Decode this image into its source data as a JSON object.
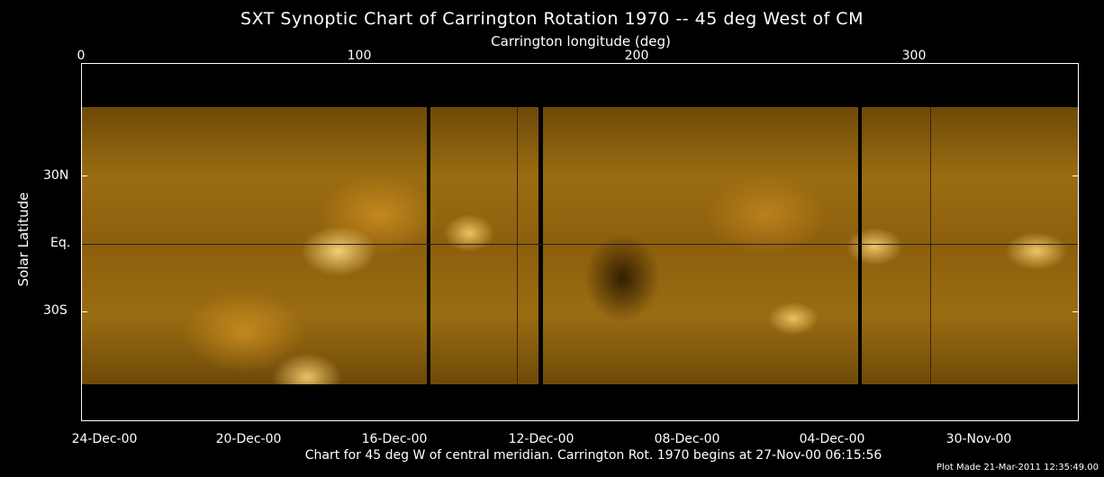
{
  "title": "SXT Synoptic Chart of Carrington Rotation 1970 -- 45 deg West of CM",
  "top_axis": {
    "label": "Carrington longitude (deg)",
    "ticks": [
      "0",
      "100",
      "200",
      "300"
    ]
  },
  "left_axis": {
    "label": "Solar Latitude",
    "ticks": [
      "30N",
      "Eq.",
      "30S"
    ]
  },
  "bottom_axis": {
    "ticks": [
      "24-Dec-00",
      "20-Dec-00",
      "16-Dec-00",
      "12-Dec-00",
      "08-Dec-00",
      "04-Dec-00",
      "30-Nov-00"
    ]
  },
  "caption": "Chart for 45 deg W of central meridian.  Carrington Rot. 1970 begins at 27-Nov-00 06:15:56",
  "plot_made": "Plot Made 21-Mar-2011 12:35:49.00",
  "colors": {
    "background": "#000000",
    "map_base": "#9a6c12",
    "map_bright": "#ffdc82"
  }
}
